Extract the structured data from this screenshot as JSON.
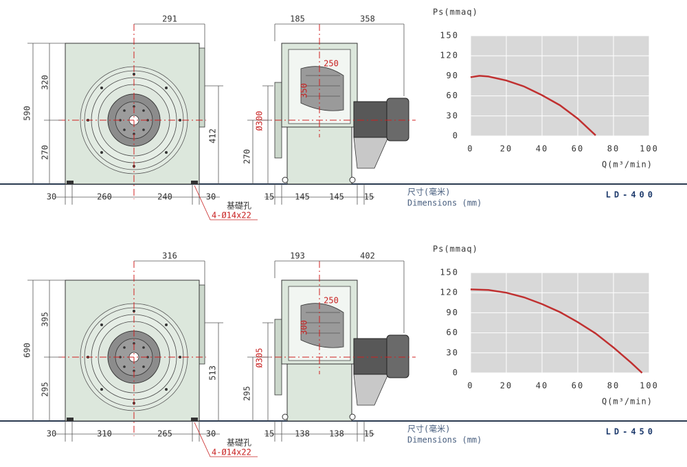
{
  "sections": [
    {
      "model": "LD-400",
      "front_dims": [
        "291",
        "590",
        "320",
        "270",
        "412",
        "30",
        "260",
        "240",
        "30"
      ],
      "side_dims": [
        "185",
        "358",
        "250",
        "350",
        "Ø300",
        "270",
        "15",
        "145",
        "145",
        "15"
      ],
      "base_hole": {
        "label": "基礎孔",
        "spec": "4-Ø14x22"
      },
      "units_cn": "尺寸(毫米)",
      "units_en": "Dimensions (mm)"
    },
    {
      "model": "LD-450",
      "front_dims": [
        "316",
        "690",
        "395",
        "295",
        "513",
        "30",
        "310",
        "265",
        "30"
      ],
      "side_dims": [
        "193",
        "402",
        "250",
        "300",
        "Ø305",
        "295",
        "15",
        "138",
        "138",
        "15"
      ],
      "base_hole": {
        "label": "基礎孔",
        "spec": "4-Ø14x22"
      },
      "units_cn": "尺寸(毫米)",
      "units_en": "Dimensions (mm)"
    }
  ],
  "chart_data": [
    {
      "type": "line",
      "y_label": "Ps(mmaq)",
      "x_label": "Q(m³/min)",
      "x": [
        0,
        5,
        10,
        20,
        30,
        40,
        50,
        60,
        70
      ],
      "series": [
        {
          "color": "#c03030",
          "values": [
            88,
            90,
            89,
            83,
            74,
            61,
            46,
            26,
            1
          ]
        }
      ],
      "xlim": [
        0,
        100
      ],
      "ylim": [
        0,
        150
      ],
      "xticks": [
        0,
        20,
        40,
        60,
        80,
        100
      ],
      "yticks": [
        0,
        30,
        60,
        90,
        120,
        150
      ],
      "grid": true
    },
    {
      "type": "line",
      "y_label": "Ps(mmaq)",
      "x_label": "Q(m³/min)",
      "x": [
        0,
        10,
        20,
        30,
        40,
        50,
        60,
        70,
        80,
        90,
        96
      ],
      "series": [
        {
          "color": "#c03030",
          "values": [
            125,
            124,
            120,
            113,
            103,
            91,
            76,
            59,
            38,
            15,
            0
          ]
        }
      ],
      "xlim": [
        0,
        100
      ],
      "ylim": [
        0,
        150
      ],
      "xticks": [
        0,
        20,
        40,
        60,
        80,
        100
      ],
      "yticks": [
        0,
        30,
        60,
        90,
        120,
        150
      ],
      "grid": true
    }
  ]
}
